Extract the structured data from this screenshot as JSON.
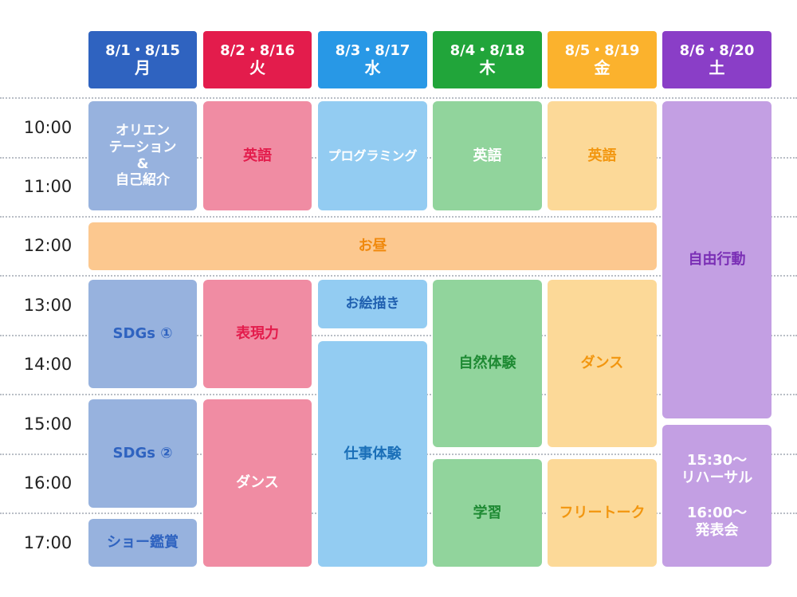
{
  "days": [
    {
      "dates": "8/1・8/15",
      "weekday": "月",
      "color": "#2f63c0"
    },
    {
      "dates": "8/2・8/16",
      "weekday": "火",
      "color": "#e31c4c"
    },
    {
      "dates": "8/3・8/17",
      "weekday": "水",
      "color": "#2898e6"
    },
    {
      "dates": "8/4・8/18",
      "weekday": "木",
      "color": "#21a53a"
    },
    {
      "dates": "8/5・8/19",
      "weekday": "金",
      "color": "#fbb22d"
    },
    {
      "dates": "8/6・8/20",
      "weekday": "土",
      "color": "#8a3ec7"
    }
  ],
  "times": [
    "10:00",
    "11:00",
    "12:00",
    "13:00",
    "14:00",
    "15:00",
    "16:00",
    "17:00"
  ],
  "schedule": {
    "mon": [
      {
        "label": "オリエン\nテーション\n&\n自己紹介"
      },
      {
        "label": "SDGs ①"
      },
      {
        "label": "SDGs ②"
      },
      {
        "label": "ショー鑑賞"
      }
    ],
    "tue": [
      {
        "label": "英語"
      },
      {
        "label": "表現力"
      },
      {
        "label": "ダンス"
      }
    ],
    "wed": [
      {
        "label": "プログラミング"
      },
      {
        "label": "お絵描き"
      },
      {
        "label": "仕事体験"
      }
    ],
    "thu": [
      {
        "label": "英語"
      },
      {
        "label": "自然体験"
      },
      {
        "label": "学習"
      }
    ],
    "fri": [
      {
        "label": "英語"
      },
      {
        "label": "ダンス"
      },
      {
        "label": "フリートーク"
      }
    ],
    "sat": [
      {
        "label": "自由行動"
      },
      {
        "label": "15:30～\nリハーサル\n\n16:00～\n発表会"
      }
    ],
    "lunch": {
      "label": "お昼"
    }
  }
}
